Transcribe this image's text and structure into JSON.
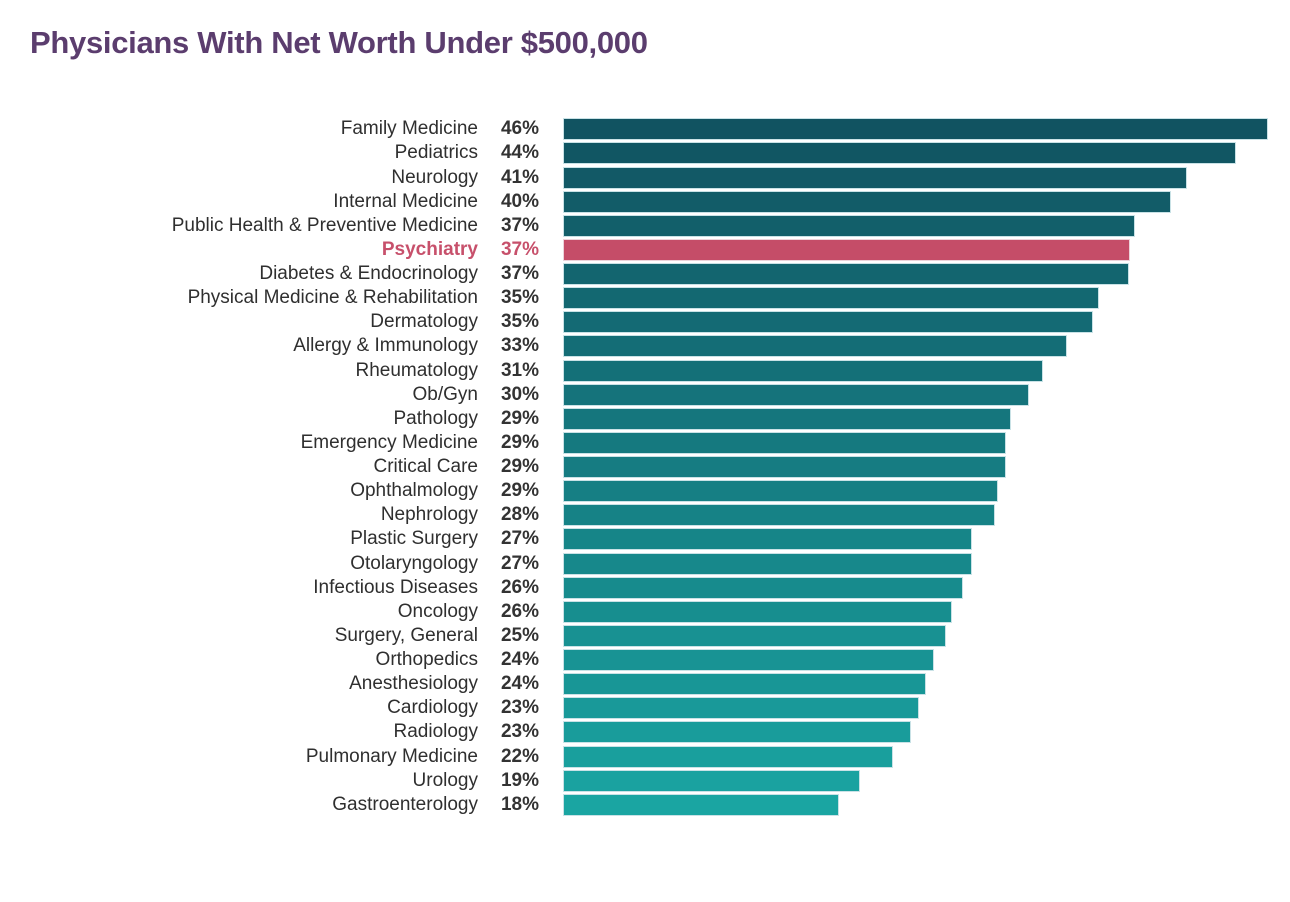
{
  "title": {
    "text": "Physicians With Net Worth Under $500,000",
    "color": "#5b3d6e"
  },
  "chart_data": {
    "type": "bar",
    "orientation": "horizontal",
    "title": "Physicians With Net Worth Under $500,000",
    "xlabel": "",
    "ylabel": "",
    "xlim": [
      0,
      46
    ],
    "grid": false,
    "legend": false,
    "value_suffix": "%",
    "categories": [
      "Family Medicine",
      "Pediatrics",
      "Neurology",
      "Internal Medicine",
      "Public Health & Preventive Medicine",
      "Psychiatry",
      "Diabetes & Endocrinology",
      "Physical Medicine & Rehabilitation",
      "Dermatology",
      "Allergy & Immunology",
      "Rheumatology",
      "Ob/Gyn",
      "Pathology",
      "Emergency Medicine",
      "Critical Care",
      "Ophthalmology",
      "Nephrology",
      "Plastic Surgery",
      "Otolaryngology",
      "Infectious Diseases",
      "Oncology",
      "Surgery, General",
      "Orthopedics",
      "Anesthesiology",
      "Cardiology",
      "Radiology",
      "Pulmonary Medicine",
      "Urology",
      "Gastroenterology"
    ],
    "values": [
      46,
      44,
      41,
      40,
      37,
      37,
      37,
      35,
      35,
      33,
      31,
      30,
      29,
      29,
      29,
      29,
      28,
      27,
      27,
      26,
      26,
      25,
      24,
      24,
      23,
      23,
      22,
      19,
      18
    ],
    "value_labels": [
      "46%",
      "44%",
      "41%",
      "40%",
      "37%",
      "37%",
      "37%",
      "35%",
      "35%",
      "33%",
      "31%",
      "30%",
      "29%",
      "29%",
      "29%",
      "29%",
      "28%",
      "27%",
      "27%",
      "26%",
      "26%",
      "25%",
      "24%",
      "24%",
      "23%",
      "23%",
      "22%",
      "19%",
      "18%"
    ],
    "bar_lengths_precise": [
      46.0,
      43.9,
      40.7,
      39.7,
      37.3,
      37.0,
      36.9,
      35.0,
      34.6,
      32.9,
      31.3,
      30.4,
      29.2,
      28.9,
      28.9,
      28.4,
      28.2,
      26.7,
      26.7,
      26.1,
      25.4,
      25.0,
      24.2,
      23.7,
      23.2,
      22.7,
      21.5,
      19.4,
      18.0
    ],
    "highlight_index": 5,
    "highlight_category": "Psychiatry",
    "colors": {
      "bar_gradient_top": "#115361",
      "bar_gradient_bottom": "#1aa5a2",
      "highlight_bar": "#c54d68",
      "highlight_text": "#c7506b",
      "bar_border": "#c9e2e6",
      "label_text": "#2f2f2f",
      "value_text": "#333333",
      "title_text": "#5b3d6e"
    }
  }
}
